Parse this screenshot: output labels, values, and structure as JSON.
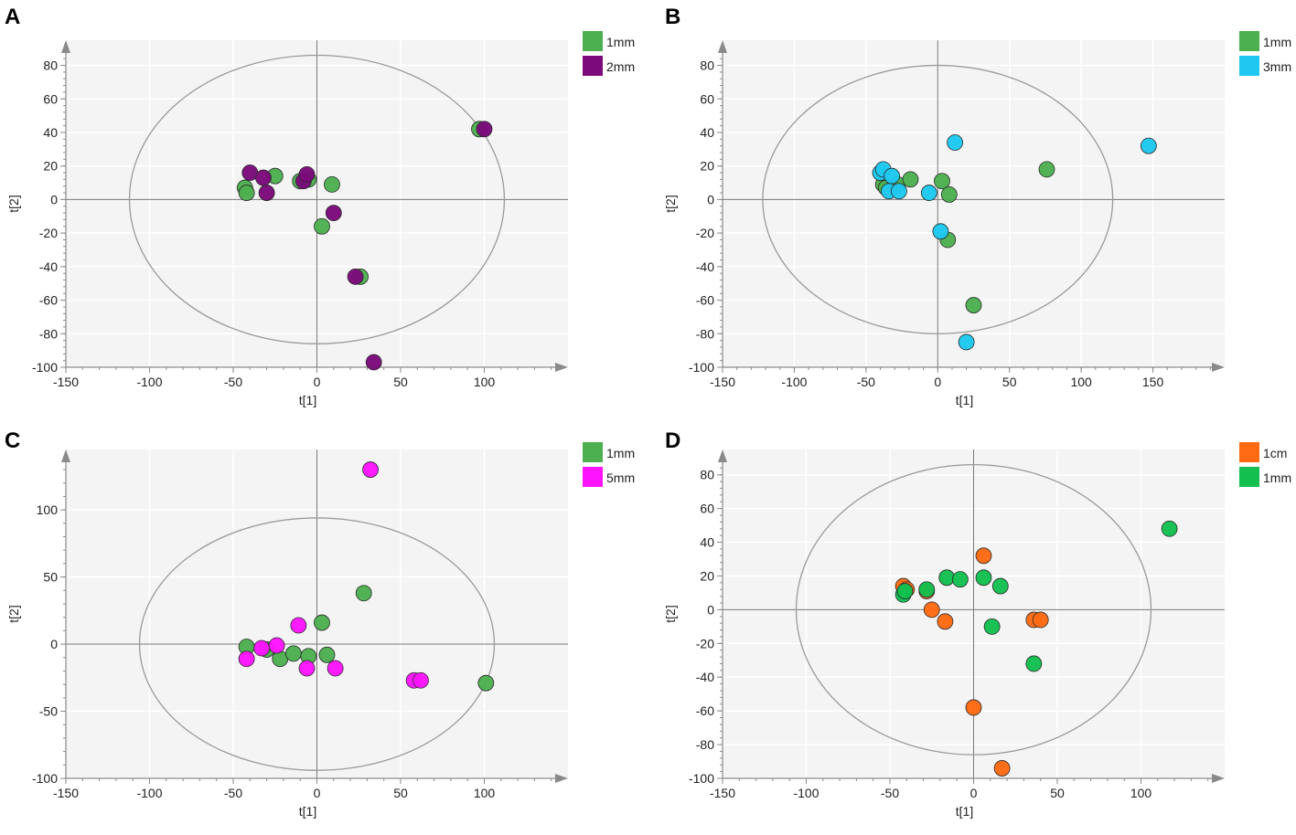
{
  "chart_data": [
    {
      "panel": "A",
      "type": "scatter",
      "xlabel": "t[1]",
      "ylabel": "t[2]",
      "xlim": [
        -150,
        150
      ],
      "ylim": [
        -100,
        95
      ],
      "xticks": [
        -150,
        -100,
        -50,
        0,
        50,
        100
      ],
      "yticks": [
        -100,
        -80,
        -60,
        -40,
        -20,
        0,
        20,
        40,
        60,
        80
      ],
      "ellipse": {
        "rx": 112,
        "ry": 86
      },
      "legend": "top-right",
      "series": [
        {
          "name": "1mm",
          "color": "#4caf50",
          "points": [
            [
              -43,
              7
            ],
            [
              -42,
              4
            ],
            [
              -25,
              14
            ],
            [
              -10,
              11
            ],
            [
              -5,
              12
            ],
            [
              9,
              9
            ],
            [
              3,
              -16
            ],
            [
              26,
              -46
            ],
            [
              97,
              42
            ]
          ]
        },
        {
          "name": "2mm",
          "color": "#7b0a7b",
          "points": [
            [
              -40,
              16
            ],
            [
              -32,
              13
            ],
            [
              -30,
              4
            ],
            [
              -8,
              11
            ],
            [
              -6,
              15
            ],
            [
              10,
              -8
            ],
            [
              23,
              -46
            ],
            [
              34,
              -97
            ],
            [
              100,
              42
            ]
          ]
        }
      ]
    },
    {
      "panel": "B",
      "type": "scatter",
      "xlabel": "t[1]",
      "ylabel": "t[2]",
      "xlim": [
        -150,
        200
      ],
      "ylim": [
        -100,
        95
      ],
      "xticks": [
        -150,
        -100,
        -50,
        0,
        50,
        100,
        150
      ],
      "yticks": [
        -100,
        -80,
        -60,
        -40,
        -20,
        0,
        20,
        40,
        60,
        80
      ],
      "ellipse": {
        "rx": 122,
        "ry": 80
      },
      "legend": "top-right",
      "series": [
        {
          "name": "1mm",
          "color": "#4caf50",
          "points": [
            [
              -38,
              9
            ],
            [
              -36,
              7
            ],
            [
              -28,
              9
            ],
            [
              -19,
              12
            ],
            [
              3,
              11
            ],
            [
              8,
              3
            ],
            [
              7,
              -24
            ],
            [
              25,
              -63
            ],
            [
              76,
              18
            ]
          ]
        },
        {
          "name": "3mm",
          "color": "#1ec8f0",
          "points": [
            [
              -40,
              16
            ],
            [
              -38,
              18
            ],
            [
              -34,
              5
            ],
            [
              -32,
              14
            ],
            [
              -27,
              5
            ],
            [
              -6,
              4
            ],
            [
              12,
              34
            ],
            [
              2,
              -19
            ],
            [
              20,
              -85
            ],
            [
              147,
              32
            ]
          ]
        }
      ]
    },
    {
      "panel": "C",
      "type": "scatter",
      "xlabel": "t[1]",
      "ylabel": "t[2]",
      "xlim": [
        -150,
        150
      ],
      "ylim": [
        -100,
        145
      ],
      "xticks": [
        -150,
        -100,
        -50,
        0,
        50,
        100
      ],
      "yticks": [
        -100,
        -50,
        0,
        50,
        100
      ],
      "ellipse": {
        "rx": 106,
        "ry": 94
      },
      "legend": "top-right",
      "series": [
        {
          "name": "1mm",
          "color": "#4caf50",
          "points": [
            [
              -42,
              -2
            ],
            [
              -30,
              -4
            ],
            [
              -22,
              -11
            ],
            [
              -14,
              -7
            ],
            [
              -5,
              -9
            ],
            [
              3,
              16
            ],
            [
              6,
              -8
            ],
            [
              28,
              38
            ],
            [
              101,
              -29
            ]
          ]
        },
        {
          "name": "5mm",
          "color": "#ff14ff",
          "points": [
            [
              -42,
              -11
            ],
            [
              -33,
              -3
            ],
            [
              -24,
              -1
            ],
            [
              -11,
              14
            ],
            [
              -6,
              -18
            ],
            [
              11,
              -18
            ],
            [
              32,
              130
            ],
            [
              58,
              -27
            ],
            [
              62,
              -27
            ]
          ]
        }
      ]
    },
    {
      "panel": "D",
      "type": "scatter",
      "xlabel": "t[1]",
      "ylabel": "t[2]",
      "xlim": [
        -150,
        150
      ],
      "ylim": [
        -100,
        95
      ],
      "xticks": [
        -150,
        -100,
        -50,
        0,
        50,
        100
      ],
      "yticks": [
        -100,
        -80,
        -60,
        -40,
        -20,
        0,
        20,
        40,
        60,
        80
      ],
      "ellipse": {
        "rx": 106,
        "ry": 86
      },
      "legend": "top-right",
      "series": [
        {
          "name": "1cm",
          "color": "#ff6a13",
          "points": [
            [
              -42,
              14
            ],
            [
              -40,
              12
            ],
            [
              -28,
              11
            ],
            [
              -25,
              0
            ],
            [
              -17,
              -7
            ],
            [
              6,
              32
            ],
            [
              36,
              -6
            ],
            [
              40,
              -6
            ],
            [
              0,
              -58
            ],
            [
              17,
              -94
            ]
          ]
        },
        {
          "name": "1mm",
          "color": "#13c04f",
          "points": [
            [
              -42,
              9
            ],
            [
              -41,
              11
            ],
            [
              -28,
              12
            ],
            [
              -16,
              19
            ],
            [
              -8,
              18
            ],
            [
              6,
              19
            ],
            [
              11,
              -10
            ],
            [
              16,
              14
            ],
            [
              36,
              -32
            ],
            [
              117,
              48
            ]
          ]
        }
      ]
    }
  ]
}
